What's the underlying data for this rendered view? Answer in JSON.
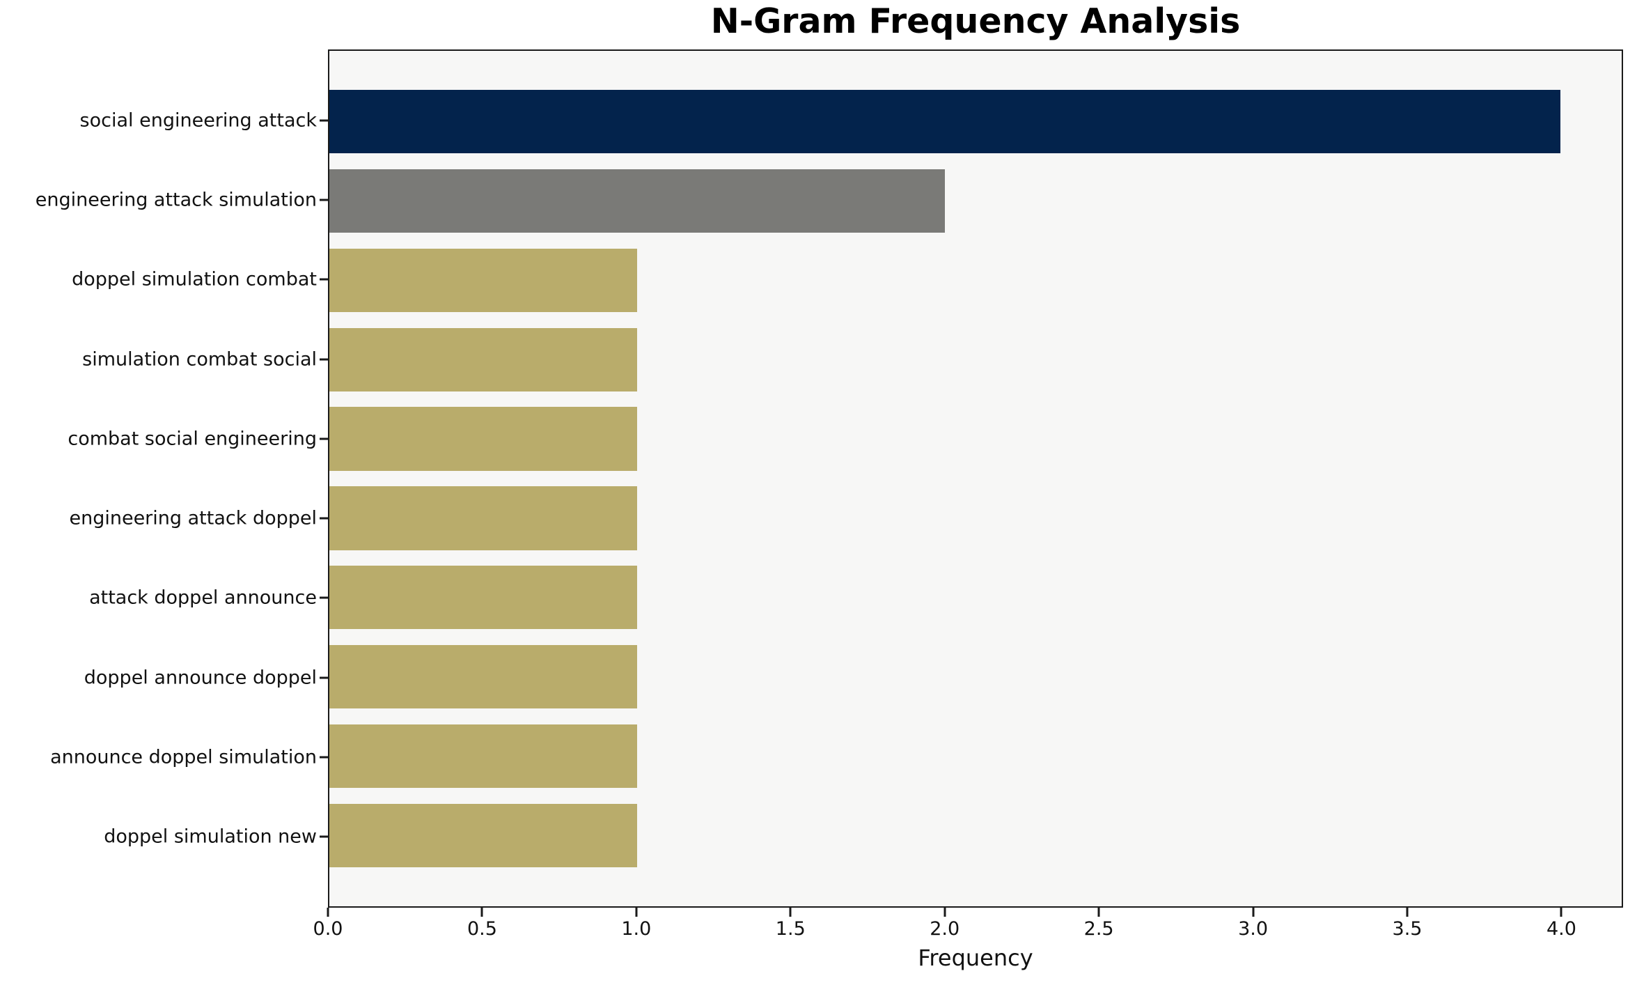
{
  "chart_data": {
    "type": "bar",
    "orientation": "horizontal",
    "title": "N-Gram Frequency Analysis",
    "xlabel": "Frequency",
    "ylabel": "",
    "categories": [
      "social engineering attack",
      "engineering attack simulation",
      "doppel simulation combat",
      "simulation combat social",
      "combat social engineering",
      "engineering attack doppel",
      "attack doppel announce",
      "doppel announce doppel",
      "announce doppel simulation",
      "doppel simulation new"
    ],
    "values": [
      4,
      2,
      1,
      1,
      1,
      1,
      1,
      1,
      1,
      1
    ],
    "bar_colors": [
      "#03234C",
      "#7A7A77",
      "#B9AC6B",
      "#B9AC6B",
      "#B9AC6B",
      "#B9AC6B",
      "#B9AC6B",
      "#B9AC6B",
      "#B9AC6B",
      "#B9AC6B"
    ],
    "xlim": [
      0,
      4.2
    ],
    "xticks": [
      "0.0",
      "0.5",
      "1.0",
      "1.5",
      "2.0",
      "2.5",
      "3.0",
      "3.5",
      "4.0"
    ],
    "grid": false,
    "legend": null,
    "bar_width_fraction": 0.8,
    "plot_bg": "#F7F7F6",
    "figure_bg": "#FFFFFF"
  }
}
